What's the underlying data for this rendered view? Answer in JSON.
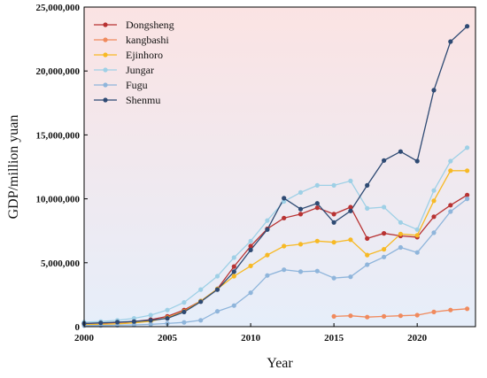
{
  "chart_data": {
    "type": "line",
    "title": "",
    "xlabel": "Year",
    "ylabel": "GDP/million yuan",
    "xlim": [
      2000,
      2023.5
    ],
    "ylim": [
      0,
      25000000
    ],
    "x_ticks": [
      2000,
      2005,
      2010,
      2015,
      2020
    ],
    "y_ticks": [
      0,
      5000000,
      10000000,
      15000000,
      20000000,
      25000000
    ],
    "y_tick_labels": [
      "0",
      "5,000,000",
      "10,000,000",
      "15,000,000",
      "20,000,000",
      "25,000,000"
    ],
    "grid": false,
    "legend_position": "top-left",
    "background": "vertical gradient, light pink at top to light blue at bottom",
    "series": [
      {
        "name": "Dongsheng",
        "color": "#b83232",
        "x": [
          2000,
          2001,
          2002,
          2003,
          2004,
          2005,
          2006,
          2007,
          2008,
          2009,
          2010,
          2011,
          2012,
          2013,
          2014,
          2015,
          2016,
          2017,
          2018,
          2019,
          2020,
          2021,
          2022,
          2023
        ],
        "y": [
          250000,
          280000,
          320000,
          400000,
          550000,
          800000,
          1300000,
          2000000,
          2950000,
          4700000,
          6300000,
          7650000,
          8500000,
          8800000,
          9300000,
          8800000,
          9350000,
          6900000,
          7300000,
          7100000,
          7000000,
          8600000,
          9500000,
          10300000
        ]
      },
      {
        "name": "kangbashi",
        "color": "#f08a5d",
        "x": [
          2015,
          2016,
          2017,
          2018,
          2019,
          2020,
          2021,
          2022,
          2023
        ],
        "y": [
          800000,
          850000,
          750000,
          800000,
          850000,
          900000,
          1150000,
          1300000,
          1400000
        ]
      },
      {
        "name": "Ejinhoro",
        "color": "#f7b924",
        "x": [
          2000,
          2001,
          2002,
          2003,
          2004,
          2005,
          2006,
          2007,
          2008,
          2009,
          2010,
          2011,
          2012,
          2013,
          2014,
          2015,
          2016,
          2017,
          2018,
          2019,
          2020,
          2021,
          2022,
          2023
        ],
        "y": [
          150000,
          180000,
          220000,
          300000,
          420000,
          700000,
          1200000,
          2000000,
          2950000,
          3950000,
          4750000,
          5600000,
          6300000,
          6450000,
          6700000,
          6600000,
          6800000,
          5600000,
          6050000,
          7250000,
          7150000,
          9850000,
          12200000,
          12200000
        ]
      },
      {
        "name": "Jungar",
        "color": "#9ed0e6",
        "x": [
          2000,
          2001,
          2002,
          2003,
          2004,
          2005,
          2006,
          2007,
          2008,
          2009,
          2010,
          2011,
          2012,
          2013,
          2014,
          2015,
          2016,
          2017,
          2018,
          2019,
          2020,
          2021,
          2022,
          2023
        ],
        "y": [
          350000,
          400000,
          500000,
          650000,
          900000,
          1300000,
          1900000,
          2900000,
          3950000,
          5400000,
          6700000,
          8300000,
          9800000,
          10500000,
          11050000,
          11050000,
          11400000,
          9250000,
          9350000,
          8150000,
          7600000,
          10650000,
          12950000,
          14000000
        ]
      },
      {
        "name": "Fugu",
        "color": "#8fb5db",
        "x": [
          2000,
          2001,
          2002,
          2003,
          2004,
          2005,
          2006,
          2007,
          2008,
          2009,
          2010,
          2011,
          2012,
          2013,
          2014,
          2015,
          2016,
          2017,
          2018,
          2019,
          2020,
          2021,
          2022,
          2023
        ],
        "y": [
          80000,
          90000,
          110000,
          140000,
          180000,
          250000,
          330000,
          500000,
          1200000,
          1650000,
          2650000,
          4000000,
          4450000,
          4300000,
          4350000,
          3800000,
          3900000,
          4850000,
          5450000,
          6200000,
          5800000,
          7350000,
          9000000,
          10000000
        ]
      },
      {
        "name": "Shenmu",
        "color": "#2e4a73",
        "x": [
          2000,
          2001,
          2002,
          2003,
          2004,
          2005,
          2006,
          2007,
          2008,
          2009,
          2010,
          2011,
          2012,
          2013,
          2014,
          2015,
          2016,
          2017,
          2018,
          2019,
          2020,
          2021,
          2022,
          2023
        ],
        "y": [
          250000,
          300000,
          350000,
          400000,
          500000,
          650000,
          1150000,
          1950000,
          2900000,
          4300000,
          6000000,
          7600000,
          10050000,
          9200000,
          9650000,
          8150000,
          9050000,
          11050000,
          13000000,
          13700000,
          12950000,
          18500000,
          22300000,
          23500000
        ]
      }
    ]
  }
}
